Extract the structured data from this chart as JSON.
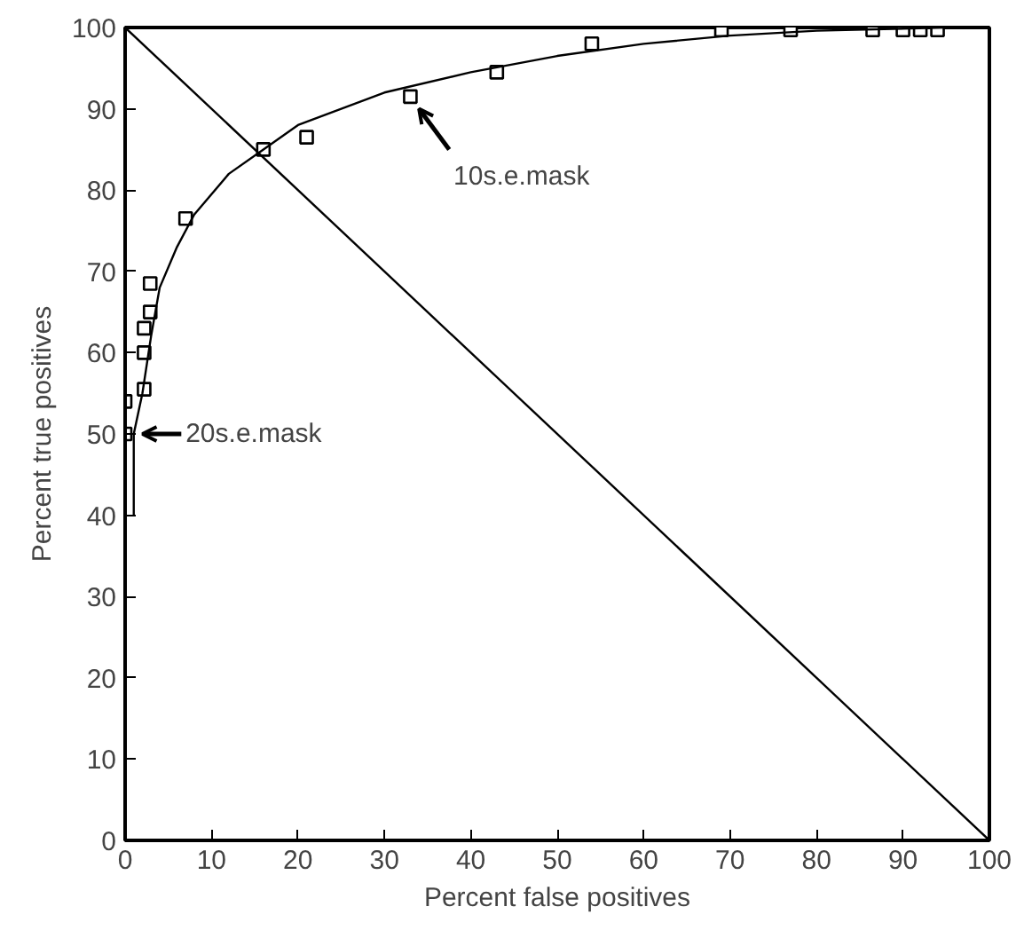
{
  "chart_data": {
    "type": "scatter",
    "xlabel": "Percent false positives",
    "ylabel": "Percent true positives",
    "xlim": [
      0,
      100
    ],
    "ylim": [
      0,
      100
    ],
    "xticks": [
      0,
      10,
      20,
      30,
      40,
      50,
      60,
      70,
      80,
      90,
      100
    ],
    "yticks": [
      0,
      10,
      20,
      30,
      40,
      50,
      60,
      70,
      80,
      90,
      100
    ],
    "grid": false,
    "marker": "square",
    "series": [
      {
        "color": "#000000",
        "x": [
          0,
          0,
          2.2,
          2.2,
          2.2,
          2.9,
          2.9,
          7,
          16,
          21,
          33,
          43,
          54,
          69,
          77,
          86.5,
          90,
          92,
          94
        ],
        "values": [
          50,
          54,
          55.5,
          60,
          63,
          65,
          68.5,
          76.5,
          85,
          86.5,
          91.5,
          94.5,
          98,
          99.7,
          99.7,
          99.7,
          99.7,
          99.7,
          99.7
        ]
      },
      {
        "type": "line",
        "color": "#000000",
        "marker": "none",
        "line_style": "solid",
        "x": [
          1,
          1,
          2,
          3,
          4,
          6,
          8,
          12,
          16,
          20,
          25,
          30,
          40,
          50,
          60,
          70,
          80,
          95
        ],
        "values": [
          40,
          50,
          55,
          62,
          68,
          73,
          77,
          82,
          85,
          88,
          90,
          92,
          94.5,
          96.5,
          98,
          99,
          99.6,
          100
        ]
      },
      {
        "type": "line",
        "color": "#000000",
        "marker": "none",
        "line_style": "solid",
        "x": [
          0,
          100
        ],
        "values": [
          100,
          0
        ]
      }
    ],
    "annotations": [
      {
        "text": "20s.e.mask",
        "x": 1,
        "y": 50
      },
      {
        "text": "10s.e.mask",
        "x": 33,
        "y": 91.5
      }
    ]
  }
}
